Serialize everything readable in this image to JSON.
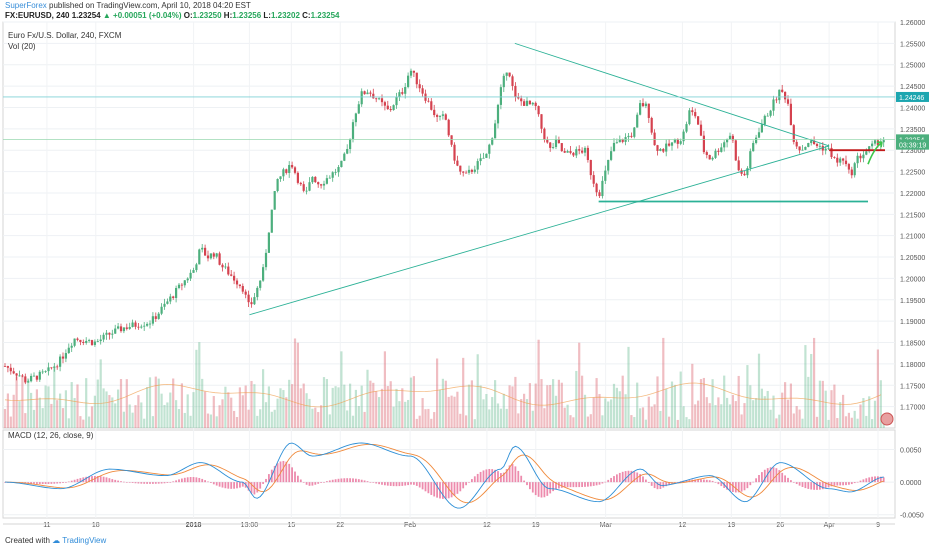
{
  "header": {
    "publisher": "SuperForex",
    "published_text": "published on TradingView.com, April 10, 2018 04:20 EST",
    "symbol": "FX:EURUSD, 240",
    "last": "1.23254",
    "change": "+0.00051 (+0.04%)",
    "o_label": "O:",
    "o_value": "1.23250",
    "h_label": "H:",
    "h_value": "1.23256",
    "l_label": "L:",
    "l_value": "1.23202",
    "c_label": "C:",
    "c_value": "1.23254"
  },
  "legend": {
    "title": "Euro Fx/U.S. Dollar, 240, FXCM",
    "volume": "Vol (20)",
    "macd": "MACD (12, 26, close, 9)"
  },
  "footer": {
    "created_with": "Created with",
    "brand": "TradingView"
  },
  "colors": {
    "up": "#4caf7d",
    "down": "#d5424f",
    "trend": "#2bb196",
    "macd": "#2d8fd6",
    "signal": "#f08a3c",
    "hist": "#e55a8a",
    "red_level": "#c21a1a",
    "green_arrow": "#3cc74b"
  },
  "chart_data": {
    "type": "candlestick",
    "symbol": "EURUSD",
    "timeframe": "240",
    "ylim": [
      1.165,
      1.26
    ],
    "y_ticks": [
      "1.26000",
      "1.25500",
      "1.25000",
      "1.24500",
      "1.24000",
      "1.23500",
      "1.23000",
      "1.22500",
      "1.22000",
      "1.21500",
      "1.21000",
      "1.20500",
      "1.20000",
      "1.19500",
      "1.19000",
      "1.18500",
      "1.18000",
      "1.17500",
      "1.17000"
    ],
    "x_ticks": [
      "11",
      "18",
      "2018",
      "13:00",
      "15",
      "22",
      "Feb",
      "12",
      "19",
      "Mar",
      "12",
      "19",
      "26",
      "Apr",
      "9"
    ],
    "price_labels": [
      {
        "value": "1.24246",
        "color": "#1da6b0"
      },
      {
        "value": "1.23254",
        "color": "#4caf7d"
      },
      {
        "value": "03:39:19",
        "color": "#4caf7d"
      }
    ],
    "close_path": [
      {
        "x": "Dec 5",
        "y": 1.1795
      },
      {
        "x": "Dec 7",
        "y": 1.1775
      },
      {
        "x": "Dec 8",
        "y": 1.176
      },
      {
        "x": "Dec 11",
        "y": 1.178
      },
      {
        "x": "Dec 13",
        "y": 1.181
      },
      {
        "x": "Dec 14",
        "y": 1.184
      },
      {
        "x": "Dec 15",
        "y": 1.186
      },
      {
        "x": "Dec 18",
        "y": 1.185
      },
      {
        "x": "Dec 20",
        "y": 1.187
      },
      {
        "x": "Dec 22",
        "y": 1.1885
      },
      {
        "x": "Dec 26",
        "y": 1.19
      },
      {
        "x": "Dec 28",
        "y": 1.194
      },
      {
        "x": "Jan 1",
        "y": 1.202
      },
      {
        "x": "Jan 2",
        "y": 1.207
      },
      {
        "x": "Jan 3",
        "y": 1.205
      },
      {
        "x": "Jan 4",
        "y": 1.206
      },
      {
        "x": "Jan 5",
        "y": 1.203
      },
      {
        "x": "Jan 8",
        "y": 1.198
      },
      {
        "x": "Jan 9",
        "y": 1.193
      },
      {
        "x": "Jan 10",
        "y": 1.197
      },
      {
        "x": "Jan 11",
        "y": 1.202
      },
      {
        "x": "Jan 12",
        "y": 1.214
      },
      {
        "x": "Jan 13",
        "y": 1.223
      },
      {
        "x": "Jan 15",
        "y": 1.227
      },
      {
        "x": "Jan 16",
        "y": 1.223
      },
      {
        "x": "Jan 17",
        "y": 1.219
      },
      {
        "x": "Jan 18",
        "y": 1.224
      },
      {
        "x": "Jan 19",
        "y": 1.222
      },
      {
        "x": "Jan 22",
        "y": 1.226
      },
      {
        "x": "Jan 23",
        "y": 1.23
      },
      {
        "x": "Jan 24",
        "y": 1.238
      },
      {
        "x": "Jan 25",
        "y": 1.243
      },
      {
        "x": "Jan 26",
        "y": 1.244
      },
      {
        "x": "Jan 29",
        "y": 1.239
      },
      {
        "x": "Jan 30",
        "y": 1.242
      },
      {
        "x": "Jan 31",
        "y": 1.244
      },
      {
        "x": "Feb 1",
        "y": 1.249
      },
      {
        "x": "Feb 2",
        "y": 1.246
      },
      {
        "x": "Feb 5",
        "y": 1.237
      },
      {
        "x": "Feb 6",
        "y": 1.238
      },
      {
        "x": "Feb 7",
        "y": 1.23
      },
      {
        "x": "Feb 8",
        "y": 1.225
      },
      {
        "x": "Feb 9",
        "y": 1.224
      },
      {
        "x": "Feb 12",
        "y": 1.229
      },
      {
        "x": "Feb 13",
        "y": 1.235
      },
      {
        "x": "Feb 14",
        "y": 1.244
      },
      {
        "x": "Feb 15",
        "y": 1.25
      },
      {
        "x": "Feb 16",
        "y": 1.242
      },
      {
        "x": "Feb 19",
        "y": 1.24
      },
      {
        "x": "Feb 20",
        "y": 1.234
      },
      {
        "x": "Feb 21",
        "y": 1.23
      },
      {
        "x": "Feb 22",
        "y": 1.232
      },
      {
        "x": "Feb 23",
        "y": 1.229
      },
      {
        "x": "Feb 26",
        "y": 1.23
      },
      {
        "x": "Feb 27",
        "y": 1.224
      },
      {
        "x": "Feb 28",
        "y": 1.2195
      },
      {
        "x": "Mar 1",
        "y": 1.225
      },
      {
        "x": "Mar 2",
        "y": 1.231
      },
      {
        "x": "Mar 5",
        "y": 1.234
      },
      {
        "x": "Mar 6",
        "y": 1.241
      },
      {
        "x": "Mar 7",
        "y": 1.24
      },
      {
        "x": "Mar 8",
        "y": 1.231
      },
      {
        "x": "Mar 9",
        "y": 1.23
      },
      {
        "x": "Mar 12",
        "y": 1.233
      },
      {
        "x": "Mar 13",
        "y": 1.239
      },
      {
        "x": "Mar 14",
        "y": 1.238
      },
      {
        "x": "Mar 15",
        "y": 1.23
      },
      {
        "x": "Mar 16",
        "y": 1.228
      },
      {
        "x": "Mar 19",
        "y": 1.234
      },
      {
        "x": "Mar 20",
        "y": 1.225
      },
      {
        "x": "Mar 21",
        "y": 1.224
      },
      {
        "x": "Mar 22",
        "y": 1.231
      },
      {
        "x": "Mar 23",
        "y": 1.235
      },
      {
        "x": "Mar 26",
        "y": 1.244
      },
      {
        "x": "Mar 27",
        "y": 1.242
      },
      {
        "x": "Mar 28",
        "y": 1.232
      },
      {
        "x": "Mar 29",
        "y": 1.23
      },
      {
        "x": "Mar 30",
        "y": 1.232
      },
      {
        "x": "Apr 2",
        "y": 1.23
      },
      {
        "x": "Apr 3",
        "y": 1.227
      },
      {
        "x": "Apr 4",
        "y": 1.228
      },
      {
        "x": "Apr 5",
        "y": 1.224
      },
      {
        "x": "Apr 6",
        "y": 1.228
      },
      {
        "x": "Apr 9",
        "y": 1.232
      },
      {
        "x": "Apr 10",
        "y": 1.23254
      }
    ],
    "trendlines": [
      {
        "name": "rising support",
        "from": {
          "x": "Jan 9",
          "y": 1.1915
        },
        "to": {
          "x": "Apr 2",
          "y": 1.231
        }
      },
      {
        "name": "falling resistance",
        "from": {
          "x": "Feb 16",
          "y": 1.255
        },
        "to": {
          "x": "Apr 2",
          "y": 1.231
        }
      },
      {
        "name": "horizontal support",
        "from": {
          "x": "Feb 28",
          "y": 1.218
        },
        "to": {
          "x": "Apr 9",
          "y": 1.218
        }
      },
      {
        "name": "red level",
        "from": {
          "x": "Apr 2",
          "y": 1.23
        },
        "to": {
          "x": "Apr 10",
          "y": 1.23
        }
      },
      {
        "name": "resistance level",
        "y": 1.24246
      },
      {
        "name": "current price level",
        "y": 1.23254
      }
    ],
    "volume": {
      "label": "Vol (20)"
    },
    "macd": {
      "params": "12, 26, close, 9",
      "ylim": [
        -0.0055,
        0.008
      ],
      "y_ticks": [
        "0.0050",
        "0.0000",
        "-0.0050"
      ],
      "macd_path": [
        {
          "x": "Dec 5",
          "y": 0.0
        },
        {
          "x": "Dec 13",
          "y": -0.001
        },
        {
          "x": "Dec 20",
          "y": 0.002
        },
        {
          "x": "Dec 28",
          "y": 0.001
        },
        {
          "x": "Jan 2",
          "y": 0.003
        },
        {
          "x": "Jan 8",
          "y": 0.0
        },
        {
          "x": "Jan 10",
          "y": -0.0025
        },
        {
          "x": "Jan 15",
          "y": 0.006
        },
        {
          "x": "Jan 18",
          "y": 0.004
        },
        {
          "x": "Jan 25",
          "y": 0.006
        },
        {
          "x": "Feb 1",
          "y": 0.004
        },
        {
          "x": "Feb 8",
          "y": -0.004
        },
        {
          "x": "Feb 14",
          "y": 0.002
        },
        {
          "x": "Feb 16",
          "y": 0.0055
        },
        {
          "x": "Feb 21",
          "y": -0.001
        },
        {
          "x": "Feb 28",
          "y": -0.003
        },
        {
          "x": "Mar 6",
          "y": 0.002
        },
        {
          "x": "Mar 9",
          "y": -0.0005
        },
        {
          "x": "Mar 16",
          "y": 0.001
        },
        {
          "x": "Mar 21",
          "y": -0.003
        },
        {
          "x": "Mar 26",
          "y": 0.003
        },
        {
          "x": "Apr 2",
          "y": -0.001
        },
        {
          "x": "Apr 5",
          "y": -0.0015
        },
        {
          "x": "Apr 10",
          "y": 0.0008
        }
      ]
    }
  }
}
